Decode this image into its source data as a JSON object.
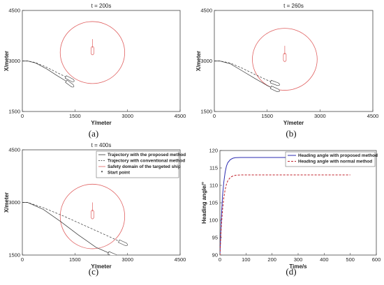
{
  "chart_data": [
    {
      "type": "line",
      "panel": "(a)",
      "title": "t = 200s",
      "xlabel": "Y/meter",
      "ylabel": "X/meter",
      "xlim": [
        0,
        4500
      ],
      "ylim": [
        1500,
        4500
      ],
      "xticks": [
        "0",
        "1500",
        "3000",
        "4500"
      ],
      "yticks": [
        "1500",
        "3000",
        "4500"
      ],
      "safety_domain": {
        "center": [
          2000,
          3250
        ],
        "radius": 920
      },
      "target_ship": {
        "bow": [
          2000,
          3650
        ],
        "stern": [
          2000,
          3180
        ]
      },
      "series": [
        {
          "style": "solid",
          "x": [
            0,
            150,
            380,
            700,
            1000,
            1250,
            1380
          ],
          "y": [
            3000,
            3000,
            2940,
            2760,
            2560,
            2400,
            2300
          ]
        },
        {
          "style": "dashed",
          "x": [
            0,
            150,
            380,
            700,
            1000,
            1250,
            1380
          ],
          "y": [
            3000,
            3000,
            2950,
            2810,
            2650,
            2520,
            2450
          ]
        }
      ]
    },
    {
      "type": "line",
      "panel": "(b)",
      "title": "t = 260s",
      "xlabel": "Y/meter",
      "ylabel": "X/meter",
      "xlim": [
        0,
        4500
      ],
      "ylim": [
        1500,
        4500
      ],
      "xticks": [
        "0",
        "1500",
        "3000",
        "4500"
      ],
      "yticks": [
        "1500",
        "3000",
        "4500"
      ],
      "safety_domain": {
        "center": [
          2000,
          3050
        ],
        "radius": 920
      },
      "target_ship": {
        "bow": [
          2000,
          3450
        ],
        "stern": [
          2000,
          2980
        ]
      },
      "series": [
        {
          "style": "solid",
          "x": [
            0,
            150,
            450,
            800,
            1150,
            1500,
            1750
          ],
          "y": [
            3000,
            3000,
            2920,
            2700,
            2480,
            2270,
            2150
          ]
        },
        {
          "style": "dashed",
          "x": [
            0,
            150,
            450,
            800,
            1150,
            1500,
            1750
          ],
          "y": [
            3000,
            3000,
            2940,
            2780,
            2600,
            2430,
            2330
          ]
        }
      ]
    },
    {
      "type": "line",
      "panel": "(c)",
      "title": "t = 400s",
      "xlabel": "Y/meter",
      "ylabel": "X/meter",
      "xlim": [
        0,
        4500
      ],
      "ylim": [
        1500,
        4500
      ],
      "xticks": [
        "0",
        "1500",
        "3000",
        "4500"
      ],
      "yticks": [
        "1500",
        "3000",
        "4500"
      ],
      "legend": {
        "position": "top-right",
        "entries": [
          "Trajectory with the proposed method",
          "Trajectory with conventional method",
          "Safety domain of the targeted ship",
          "Start point"
        ]
      },
      "safety_domain": {
        "center": [
          2000,
          2600
        ],
        "radius": 920
      },
      "target_ship": {
        "bow": [
          2000,
          3000
        ],
        "stern": [
          2000,
          2530
        ]
      },
      "series": [
        {
          "style": "solid",
          "x": [
            0,
            150,
            600,
            1100,
            1600,
            2100,
            2600
          ],
          "y": [
            3000,
            3000,
            2800,
            2450,
            2070,
            1720,
            1500
          ]
        },
        {
          "style": "dashed",
          "x": [
            0,
            150,
            600,
            1200,
            1800,
            2400,
            2900
          ],
          "y": [
            3000,
            3000,
            2850,
            2600,
            2330,
            2060,
            1830
          ]
        }
      ]
    },
    {
      "type": "line",
      "panel": "(d)",
      "title": "",
      "xlabel": "Time/s",
      "ylabel": "Heading angle/°",
      "xlim": [
        0,
        600
      ],
      "ylim": [
        90,
        120
      ],
      "xticks": [
        "0",
        "100",
        "200",
        "300",
        "400",
        "500",
        "600"
      ],
      "yticks": [
        "90",
        "95",
        "100",
        "105",
        "110",
        "115",
        "120"
      ],
      "legend": {
        "position": "top-right",
        "entries": [
          "Heading angle with proposed method",
          "Heading angle with normal method"
        ]
      },
      "series": [
        {
          "name": "Heading angle with proposed method",
          "style": "solid",
          "color": "#2b2bb0",
          "x": [
            0,
            5,
            10,
            15,
            20,
            25,
            30,
            40,
            50,
            60,
            80,
            100,
            150,
            300,
            500
          ],
          "y": [
            90,
            100,
            107,
            111,
            113.8,
            115.5,
            116.5,
            117.4,
            117.8,
            117.95,
            118,
            118,
            118,
            118,
            118
          ]
        },
        {
          "name": "Heading angle with normal method",
          "style": "dashed",
          "color": "#c0202a",
          "x": [
            0,
            5,
            10,
            15,
            20,
            25,
            30,
            40,
            50,
            60,
            80,
            100,
            150,
            300,
            500
          ],
          "y": [
            90,
            98,
            103,
            106.5,
            108.8,
            110.3,
            111.3,
            112.3,
            112.7,
            112.9,
            113,
            113,
            113,
            113,
            113
          ]
        }
      ]
    }
  ],
  "captions": [
    "(a)",
    "(b)",
    "(c)",
    "(d)"
  ],
  "colors": {
    "safety_domain": "#e06060",
    "trajectory": "#333333",
    "proposed": "#2b2bb0",
    "normal": "#c0202a"
  }
}
